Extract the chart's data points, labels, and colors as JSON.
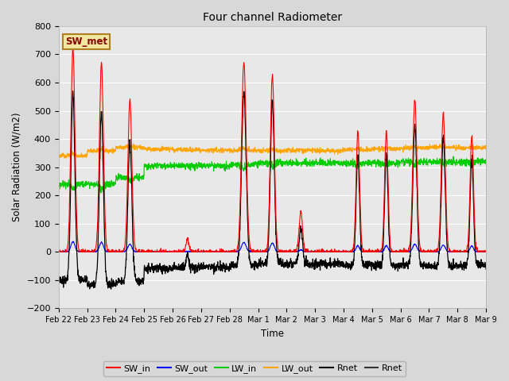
{
  "title": "Four channel Radiometer",
  "xlabel": "Time",
  "ylabel": "Solar Radiation (W/m2)",
  "ylim": [
    -200,
    800
  ],
  "yticks": [
    -200,
    -100,
    0,
    100,
    200,
    300,
    400,
    500,
    600,
    700,
    800
  ],
  "fig_bg_color": "#d8d8d8",
  "plot_bg_color": "#e8e8e8",
  "grid_color": "#ffffff",
  "annotation_text": "SW_met",
  "annotation_color": "#8B0000",
  "annotation_bg": "#f0e8a0",
  "annotation_border": "#b08020",
  "xtick_labels": [
    "Feb 22",
    "Feb 23",
    "Feb 24",
    "Feb 25",
    "Feb 26",
    "Feb 27",
    "Feb 28",
    "Mar 1",
    "Mar 2",
    "Mar 3",
    "Mar 4",
    "Mar 5",
    "Mar 6",
    "Mar 7",
    "Mar 8",
    "Mar 9"
  ],
  "n_points": 2000,
  "peak_heights": [
    720,
    670,
    540,
    0,
    45,
    0,
    670,
    625,
    140,
    0,
    430,
    430,
    540,
    490,
    410,
    0
  ],
  "peak_widths": [
    0.07,
    0.07,
    0.07,
    0.05,
    0.05,
    0.05,
    0.08,
    0.07,
    0.06,
    0.05,
    0.06,
    0.06,
    0.07,
    0.07,
    0.06,
    0.05
  ],
  "peak_offsets": [
    0.5,
    0.5,
    0.5,
    0.5,
    0.52,
    0.5,
    0.5,
    0.5,
    0.5,
    0.5,
    0.5,
    0.5,
    0.5,
    0.5,
    0.5,
    0.5
  ],
  "lw_in_base": [
    240,
    240,
    265,
    305,
    305,
    305,
    310,
    315,
    315,
    315,
    315,
    315,
    320,
    320,
    320,
    320
  ],
  "lw_out_base": [
    340,
    358,
    370,
    365,
    362,
    360,
    360,
    358,
    360,
    358,
    362,
    365,
    368,
    370,
    368,
    365
  ]
}
